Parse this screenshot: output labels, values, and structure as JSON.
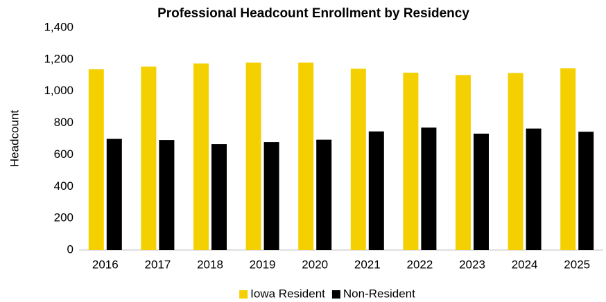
{
  "chart_data": {
    "type": "bar",
    "title": "Professional Headcount Enrollment by Residency",
    "y_label": "Headcount",
    "categories": [
      "2016",
      "2017",
      "2018",
      "2019",
      "2020",
      "2021",
      "2022",
      "2023",
      "2024",
      "2025"
    ],
    "series": [
      {
        "name": "Iowa Resident",
        "color": "#f5d000",
        "values": [
          1138,
          1155,
          1175,
          1180,
          1180,
          1142,
          1117,
          1102,
          1115,
          1145
        ]
      },
      {
        "name": "Non-Resident",
        "color": "#000000",
        "values": [
          700,
          693,
          667,
          680,
          695,
          747,
          771,
          733,
          765,
          745
        ]
      }
    ],
    "ylim": [
      0,
      1400
    ],
    "yticks": [
      0,
      200,
      400,
      600,
      800,
      {
        "value": 1000,
        "label": "1,000"
      },
      {
        "value": 1200,
        "label": "1,200"
      },
      {
        "value": 1400,
        "label": "1,400"
      }
    ],
    "grid": false,
    "legend": "bottom"
  }
}
